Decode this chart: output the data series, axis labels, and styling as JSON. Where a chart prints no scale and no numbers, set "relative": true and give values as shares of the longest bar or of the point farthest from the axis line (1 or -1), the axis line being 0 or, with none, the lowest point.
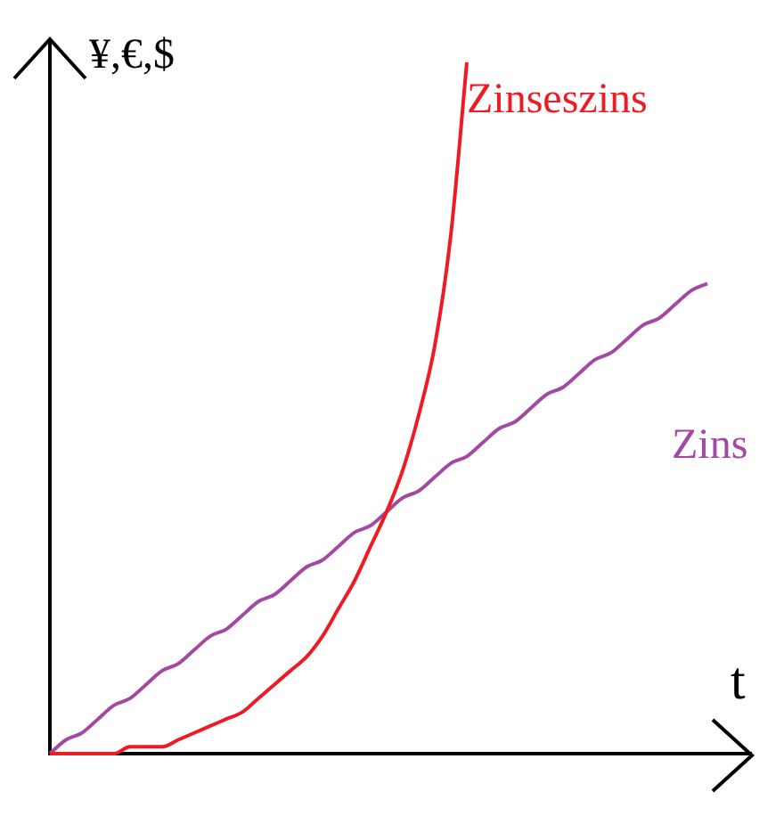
{
  "chart_data": {
    "type": "line",
    "relative": true,
    "xlabel": "t",
    "ylabel": "¥,€,$",
    "legend": false,
    "marker": "none",
    "line_style": "solid",
    "categories": [
      null,
      null,
      null,
      null,
      null,
      null,
      null,
      null,
      null,
      null,
      null,
      null,
      null,
      null,
      null,
      null,
      null,
      null,
      null,
      null,
      null,
      null,
      null,
      null,
      null,
      null,
      null,
      null,
      null,
      null,
      null,
      null,
      null,
      null,
      null,
      null,
      null,
      null,
      null,
      null,
      null,
      null,
      null,
      null,
      null
    ],
    "series": [
      {
        "name": "Zinseszins",
        "color": "#ed1c24",
        "values": [
          0,
          0,
          0,
          0,
          0,
          0.01,
          0.01,
          0.01,
          0.02,
          0.03,
          0.04,
          0.05,
          0.06,
          0.08,
          0.1,
          0.12,
          0.14,
          0.17,
          0.21,
          0.25,
          0.3,
          0.35,
          0.41,
          0.49,
          0.59,
          0.75,
          1,
          null,
          null,
          null,
          null,
          null,
          null,
          null,
          null,
          null,
          null,
          null,
          null,
          null,
          null,
          null,
          null,
          null,
          null
        ]
      },
      {
        "name": "Zins",
        "color": "#a349a4",
        "values": [
          0,
          0.02,
          0.03,
          0.05,
          0.07,
          0.08,
          0.1,
          0.12,
          0.13,
          0.15,
          0.17,
          0.18,
          0.2,
          0.22,
          0.23,
          0.25,
          0.27,
          0.28,
          0.3,
          0.32,
          0.33,
          0.35,
          0.37,
          0.38,
          0.4,
          0.42,
          0.43,
          0.45,
          0.47,
          0.48,
          0.5,
          0.52,
          0.53,
          0.55,
          0.57,
          0.58,
          0.6,
          0.62,
          0.63,
          0.65,
          0.67,
          0.68,
          null,
          null,
          null
        ]
      }
    ]
  }
}
